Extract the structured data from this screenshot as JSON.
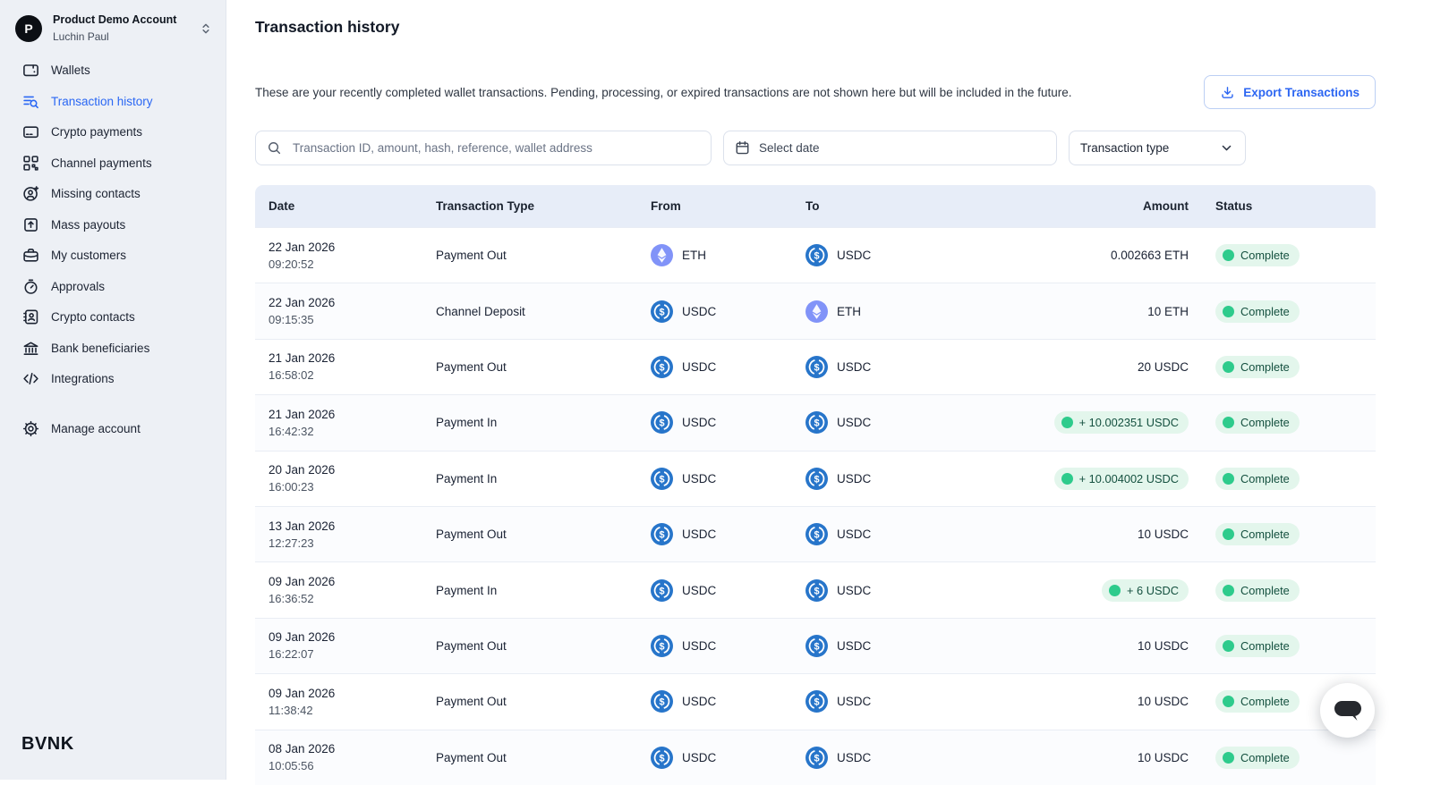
{
  "account": {
    "initial": "P",
    "name": "Product Demo Account",
    "owner": "Luchin Paul"
  },
  "sidebar": {
    "items": [
      {
        "id": "wallets",
        "label": "Wallets",
        "icon": "wallet",
        "active": false
      },
      {
        "id": "transaction-history",
        "label": "Transaction history",
        "icon": "list-search",
        "active": true
      },
      {
        "id": "crypto-payments",
        "label": "Crypto payments",
        "icon": "card",
        "active": false
      },
      {
        "id": "channel-payments",
        "label": "Channel payments",
        "icon": "qr",
        "active": false
      },
      {
        "id": "missing-contacts",
        "label": "Missing contacts",
        "icon": "user-plus-circle",
        "active": false
      },
      {
        "id": "mass-payouts",
        "label": "Mass payouts",
        "icon": "box-arrow-up",
        "active": false
      },
      {
        "id": "my-customers",
        "label": "My customers",
        "icon": "briefcase",
        "active": false
      },
      {
        "id": "approvals",
        "label": "Approvals",
        "icon": "stopwatch",
        "active": false
      },
      {
        "id": "crypto-contacts",
        "label": "Crypto contacts",
        "icon": "address-book",
        "active": false
      },
      {
        "id": "bank-beneficiaries",
        "label": "Bank beneficiaries",
        "icon": "bank",
        "active": false
      },
      {
        "id": "integrations",
        "label": "Integrations",
        "icon": "code",
        "active": false
      }
    ],
    "manage_account": {
      "id": "manage-account",
      "label": "Manage account",
      "icon": "gear"
    },
    "logo": "BVNK"
  },
  "header": {
    "title": "Transaction history",
    "description": "These are your recently completed wallet transactions. Pending, processing, or expired transactions are not shown here but will be included in the future.",
    "export_label": "Export Transactions"
  },
  "filters": {
    "search_placeholder": "Transaction ID, amount, hash, reference, wallet address",
    "date_placeholder": "Select date",
    "type_placeholder": "Transaction type"
  },
  "table": {
    "columns": [
      "Date",
      "Transaction Type",
      "From",
      "To",
      "Amount",
      "Status"
    ],
    "rows": [
      {
        "date": "22 Jan 2026",
        "time": "09:20:52",
        "type": "Payment Out",
        "from": "ETH",
        "to": "USDC",
        "amount": "0.002663 ETH",
        "positive": false,
        "status": "Complete"
      },
      {
        "date": "22 Jan 2026",
        "time": "09:15:35",
        "type": "Channel Deposit",
        "from": "USDC",
        "to": "ETH",
        "amount": "10 ETH",
        "positive": false,
        "status": "Complete"
      },
      {
        "date": "21 Jan 2026",
        "time": "16:58:02",
        "type": "Payment Out",
        "from": "USDC",
        "to": "USDC",
        "amount": "20 USDC",
        "positive": false,
        "status": "Complete"
      },
      {
        "date": "21 Jan 2026",
        "time": "16:42:32",
        "type": "Payment In",
        "from": "USDC",
        "to": "USDC",
        "amount": "+ 10.002351 USDC",
        "positive": true,
        "status": "Complete"
      },
      {
        "date": "20 Jan 2026",
        "time": "16:00:23",
        "type": "Payment In",
        "from": "USDC",
        "to": "USDC",
        "amount": "+ 10.004002 USDC",
        "positive": true,
        "status": "Complete"
      },
      {
        "date": "13 Jan 2026",
        "time": "12:27:23",
        "type": "Payment Out",
        "from": "USDC",
        "to": "USDC",
        "amount": "10 USDC",
        "positive": false,
        "status": "Complete"
      },
      {
        "date": "09 Jan 2026",
        "time": "16:36:52",
        "type": "Payment In",
        "from": "USDC",
        "to": "USDC",
        "amount": "+ 6 USDC",
        "positive": true,
        "status": "Complete"
      },
      {
        "date": "09 Jan 2026",
        "time": "16:22:07",
        "type": "Payment Out",
        "from": "USDC",
        "to": "USDC",
        "amount": "10 USDC",
        "positive": false,
        "status": "Complete"
      },
      {
        "date": "09 Jan 2026",
        "time": "11:38:42",
        "type": "Payment Out",
        "from": "USDC",
        "to": "USDC",
        "amount": "10 USDC",
        "positive": false,
        "status": "Complete"
      },
      {
        "date": "08 Jan 2026",
        "time": "10:05:56",
        "type": "Payment Out",
        "from": "USDC",
        "to": "USDC",
        "amount": "10 USDC",
        "positive": false,
        "status": "Complete"
      }
    ]
  },
  "colors": {
    "accent_blue": "#2a67f4",
    "usdc_blue": "#2775ca",
    "eth_purple": "#8193f8",
    "status_green": "#2ecb8c",
    "status_pill_bg": "#e3f6ec",
    "status_text": "#14503f",
    "sidebar_bg": "#edf0f5",
    "table_header_bg": "#e7edf8"
  }
}
